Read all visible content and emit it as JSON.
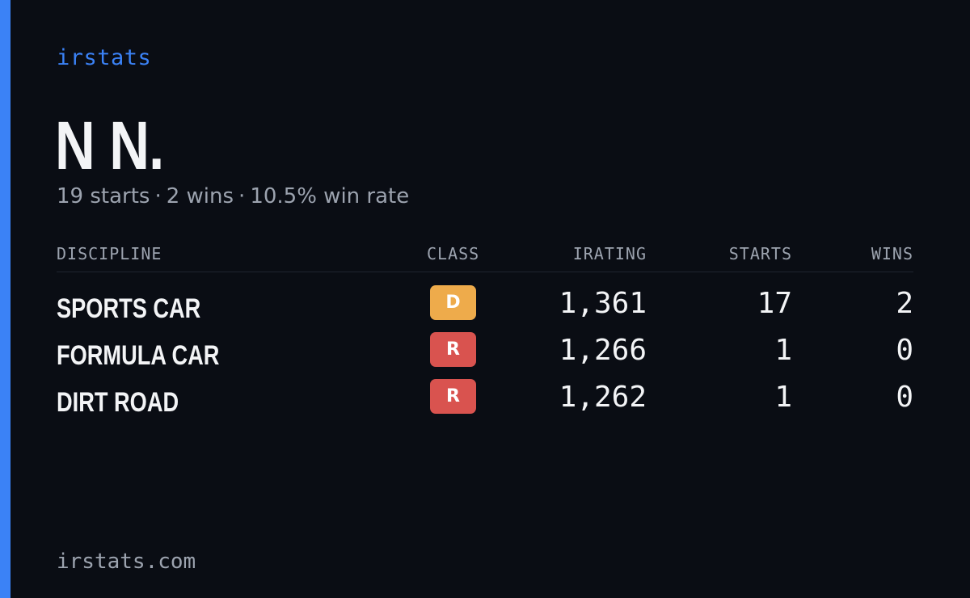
{
  "brand": "irstats",
  "player": {
    "name": "N N."
  },
  "summary": {
    "starts": "19 starts",
    "wins": "2 wins",
    "win_rate": "10.5% win rate",
    "separator": "·"
  },
  "table": {
    "headers": {
      "discipline": "DISCIPLINE",
      "class": "CLASS",
      "irating": "IRATING",
      "starts": "STARTS",
      "wins": "WINS"
    },
    "rows": [
      {
        "discipline": "SPORTS CAR",
        "class": "D",
        "class_color": "#eeab4b",
        "irating": "1,361",
        "starts": "17",
        "wins": "2"
      },
      {
        "discipline": "FORMULA CAR",
        "class": "R",
        "class_color": "#d9534f",
        "irating": "1,266",
        "starts": "1",
        "wins": "0"
      },
      {
        "discipline": "DIRT ROAD",
        "class": "R",
        "class_color": "#d9534f",
        "irating": "1,262",
        "starts": "1",
        "wins": "0"
      }
    ]
  },
  "footer": {
    "site": "irstats.com"
  },
  "colors": {
    "accent": "#3b82f6",
    "background": "#0a0d14",
    "muted": "#9ca3af",
    "text": "#f3f4f6"
  }
}
